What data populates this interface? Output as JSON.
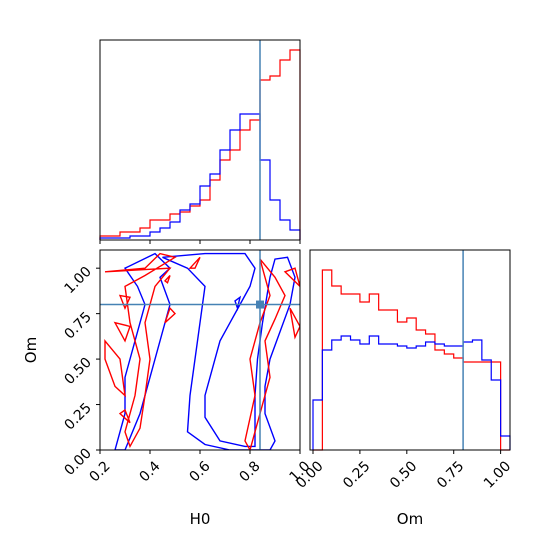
{
  "chart_data": {
    "type": "corner",
    "parameters": [
      "H0",
      "Om"
    ],
    "truth": {
      "H0": 0.84,
      "Om": 0.8
    },
    "colors": {
      "series_a": "#ff0000",
      "series_b": "#0000ff",
      "truth": "#4682b4"
    },
    "hist_H0": {
      "xlim": [
        0.2,
        1.0
      ],
      "bin_edges": [
        0.2,
        0.24,
        0.28,
        0.32,
        0.36,
        0.4,
        0.44,
        0.48,
        0.52,
        0.56,
        0.6,
        0.64,
        0.68,
        0.72,
        0.76,
        0.8,
        0.84,
        0.88,
        0.92,
        0.96,
        1.0
      ],
      "series": [
        {
          "color": "red",
          "values": [
            0.02,
            0.02,
            0.04,
            0.04,
            0.06,
            0.1,
            0.1,
            0.13,
            0.14,
            0.17,
            0.2,
            0.3,
            0.4,
            0.45,
            0.55,
            0.6,
            0.8,
            0.82,
            0.9,
            0.95
          ]
        },
        {
          "color": "blue",
          "values": [
            0.01,
            0.01,
            0.01,
            0.02,
            0.02,
            0.04,
            0.06,
            0.09,
            0.15,
            0.18,
            0.27,
            0.33,
            0.45,
            0.55,
            0.63,
            0.63,
            0.4,
            0.2,
            0.1,
            0.05
          ]
        }
      ]
    },
    "hist_Om": {
      "xlim": [
        0.0,
        1.05
      ],
      "xticks": [
        "0.00",
        "0.25",
        "0.50",
        "0.75",
        "1.00"
      ],
      "xlabel": "Om",
      "bin_edges": [
        0.0,
        0.05,
        0.1,
        0.15,
        0.2,
        0.25,
        0.3,
        0.35,
        0.4,
        0.45,
        0.5,
        0.55,
        0.6,
        0.65,
        0.7,
        0.75,
        0.8,
        0.85,
        0.9,
        0.95,
        1.0,
        1.05
      ],
      "series": [
        {
          "color": "red",
          "values": [
            0.0,
            0.9,
            0.82,
            0.78,
            0.78,
            0.74,
            0.78,
            0.7,
            0.7,
            0.64,
            0.66,
            0.6,
            0.58,
            0.5,
            0.48,
            0.46,
            0.44,
            0.44,
            0.44,
            0.44,
            0.0
          ]
        },
        {
          "color": "blue",
          "values": [
            0.25,
            0.5,
            0.55,
            0.57,
            0.55,
            0.53,
            0.57,
            0.53,
            0.53,
            0.52,
            0.51,
            0.52,
            0.54,
            0.53,
            0.52,
            0.52,
            0.54,
            0.55,
            0.45,
            0.35,
            0.07
          ]
        }
      ]
    },
    "contour_H0_Om": {
      "xlim": [
        0.2,
        1.0
      ],
      "ylim": [
        0.0,
        1.1
      ],
      "xticks": [
        "0.2",
        "0.4",
        "0.6",
        "0.8",
        "1.0"
      ],
      "yticks": [
        "0.00",
        "0.25",
        "0.50",
        "0.75",
        "1.00"
      ],
      "xlabel": "H0",
      "ylabel": "Om",
      "series": [
        {
          "color": "blue",
          "contours": [
            [
              [
                0.45,
                1.06
              ],
              [
                0.62,
                1.08
              ],
              [
                0.78,
                1.08
              ],
              [
                0.82,
                1.0
              ],
              [
                0.8,
                0.9
              ],
              [
                0.76,
                0.8
              ],
              [
                0.72,
                0.7
              ],
              [
                0.68,
                0.6
              ],
              [
                0.66,
                0.5
              ],
              [
                0.64,
                0.4
              ],
              [
                0.62,
                0.3
              ],
              [
                0.62,
                0.18
              ],
              [
                0.68,
                0.05
              ],
              [
                0.78,
                0.02
              ],
              [
                0.82,
                0.02
              ],
              [
                0.82,
                0.3
              ],
              [
                0.83,
                0.5
              ],
              [
                0.85,
                0.7
              ],
              [
                0.88,
                0.95
              ],
              [
                0.9,
                1.05
              ],
              [
                0.95,
                1.06
              ],
              [
                0.98,
                0.95
              ],
              [
                0.96,
                0.8
              ],
              [
                0.92,
                0.65
              ],
              [
                0.88,
                0.5
              ],
              [
                0.86,
                0.35
              ],
              [
                0.86,
                0.2
              ],
              [
                0.9,
                0.05
              ],
              [
                0.88,
                0.0
              ],
              [
                0.72,
                0.0
              ],
              [
                0.62,
                0.03
              ],
              [
                0.55,
                0.1
              ],
              [
                0.56,
                0.3
              ],
              [
                0.58,
                0.5
              ],
              [
                0.6,
                0.7
              ],
              [
                0.62,
                0.9
              ],
              [
                0.55,
                1.0
              ]
            ],
            [
              [
                0.42,
                1.08
              ],
              [
                0.3,
                1.0
              ],
              [
                0.35,
                0.9
              ],
              [
                0.38,
                0.8
              ],
              [
                0.34,
                0.6
              ],
              [
                0.3,
                0.4
              ],
              [
                0.3,
                0.2
              ],
              [
                0.26,
                0.0
              ],
              [
                0.3,
                0.0
              ],
              [
                0.36,
                0.2
              ],
              [
                0.4,
                0.4
              ],
              [
                0.44,
                0.6
              ],
              [
                0.48,
                0.8
              ],
              [
                0.44,
                0.95
              ],
              [
                0.48,
                1.0
              ]
            ],
            [
              [
                0.74,
                0.82
              ],
              [
                0.76,
                0.84
              ],
              [
                0.75,
                0.78
              ]
            ]
          ]
        },
        {
          "color": "red",
          "contours": [
            [
              [
                0.22,
                0.98
              ],
              [
                0.38,
                1.0
              ],
              [
                0.44,
                1.08
              ],
              [
                0.5,
                1.06
              ],
              [
                0.38,
                0.96
              ],
              [
                0.3,
                0.9
              ],
              [
                0.32,
                0.7
              ],
              [
                0.36,
                0.5
              ],
              [
                0.34,
                0.3
              ],
              [
                0.3,
                0.1
              ],
              [
                0.32,
                0.02
              ],
              [
                0.36,
                0.12
              ],
              [
                0.38,
                0.3
              ],
              [
                0.4,
                0.5
              ],
              [
                0.38,
                0.7
              ],
              [
                0.42,
                0.9
              ],
              [
                0.48,
                1.0
              ]
            ],
            [
              [
                0.28,
                0.85
              ],
              [
                0.3,
                0.78
              ],
              [
                0.32,
                0.84
              ]
            ],
            [
              [
                0.26,
                0.7
              ],
              [
                0.3,
                0.6
              ],
              [
                0.32,
                0.68
              ]
            ],
            [
              [
                0.22,
                0.6
              ],
              [
                0.28,
                0.5
              ],
              [
                0.3,
                0.3
              ],
              [
                0.26,
                0.35
              ],
              [
                0.22,
                0.5
              ]
            ],
            [
              [
                0.28,
                0.2
              ],
              [
                0.32,
                0.15
              ],
              [
                0.3,
                0.22
              ]
            ],
            [
              [
                0.84,
                1.05
              ],
              [
                0.9,
                0.95
              ],
              [
                0.94,
                0.85
              ],
              [
                0.9,
                0.72
              ],
              [
                0.86,
                0.6
              ],
              [
                0.88,
                0.4
              ],
              [
                0.84,
                0.2
              ],
              [
                0.8,
                0.0
              ],
              [
                0.78,
                0.05
              ],
              [
                0.82,
                0.3
              ],
              [
                0.8,
                0.5
              ],
              [
                0.84,
                0.7
              ],
              [
                0.88,
                0.85
              ],
              [
                0.86,
                0.95
              ]
            ],
            [
              [
                0.94,
                0.98
              ],
              [
                0.98,
                1.0
              ],
              [
                1.0,
                0.9
              ]
            ],
            [
              [
                0.96,
                0.78
              ],
              [
                1.0,
                0.68
              ],
              [
                0.98,
                0.62
              ]
            ],
            [
              [
                0.46,
                0.7
              ],
              [
                0.5,
                0.75
              ],
              [
                0.48,
                0.78
              ]
            ],
            [
              [
                0.46,
                0.93
              ],
              [
                0.48,
                0.96
              ],
              [
                0.47,
                0.92
              ]
            ],
            [
              [
                0.56,
                1.0
              ],
              [
                0.6,
                1.06
              ],
              [
                0.58,
                1.0
              ]
            ]
          ]
        }
      ]
    }
  }
}
